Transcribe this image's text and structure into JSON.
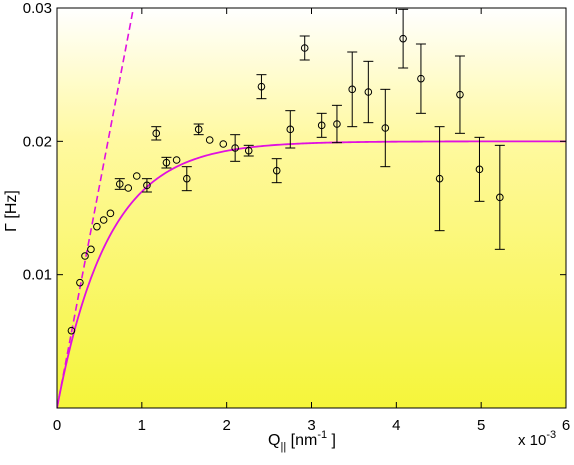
{
  "chart_data": {
    "type": "scatter",
    "title": "",
    "xlabel": "Q",
    "xlabel_sub": "||",
    "xlabel_unit": " [nm",
    "xlabel_exp": "-1",
    "xlabel_tail": " ]",
    "ylabel": "Γ [Hz]",
    "x_multiplier": "x 10",
    "x_multiplier_exp": "-3",
    "xlim": [
      0,
      6
    ],
    "ylim": [
      0,
      0.03
    ],
    "x_ticks": [
      "0",
      "1",
      "2",
      "3",
      "4",
      "5",
      "6"
    ],
    "y_ticks": [
      "0.01",
      "0.02",
      "0.03"
    ],
    "background_gradient": [
      "#ffffff",
      "#fff9a0",
      "#f5f53a"
    ],
    "fit_color": "#e010e0",
    "marker_color": "#000000",
    "series": [
      {
        "kind": "points",
        "points": [
          {
            "x": 0.17,
            "y": 0.0058,
            "err": 0
          },
          {
            "x": 0.27,
            "y": 0.0094,
            "err": 0
          },
          {
            "x": 0.33,
            "y": 0.0114,
            "err": 0
          },
          {
            "x": 0.4,
            "y": 0.0119,
            "err": 0
          },
          {
            "x": 0.47,
            "y": 0.0136,
            "err": 0
          },
          {
            "x": 0.55,
            "y": 0.0141,
            "err": 0
          },
          {
            "x": 0.63,
            "y": 0.0146,
            "err": 0
          },
          {
            "x": 0.74,
            "y": 0.0168,
            "err": 0.0004
          },
          {
            "x": 0.84,
            "y": 0.0165,
            "err": 0
          },
          {
            "x": 0.94,
            "y": 0.0174,
            "err": 0
          },
          {
            "x": 1.06,
            "y": 0.0167,
            "err": 0.0005
          },
          {
            "x": 1.17,
            "y": 0.0206,
            "err": 0.0005
          },
          {
            "x": 1.29,
            "y": 0.0184,
            "err": 0.0004
          },
          {
            "x": 1.41,
            "y": 0.0186,
            "err": 0
          },
          {
            "x": 1.53,
            "y": 0.0172,
            "err": 0.0009
          },
          {
            "x": 1.67,
            "y": 0.0209,
            "err": 0.0004
          },
          {
            "x": 1.8,
            "y": 0.0201,
            "err": 0
          },
          {
            "x": 1.96,
            "y": 0.0198,
            "err": 0
          },
          {
            "x": 2.1,
            "y": 0.0195,
            "err": 0.001
          },
          {
            "x": 2.26,
            "y": 0.0193,
            "err": 0.0004
          },
          {
            "x": 2.41,
            "y": 0.0241,
            "err": 0.0009
          },
          {
            "x": 2.59,
            "y": 0.0178,
            "err": 0.0009
          },
          {
            "x": 2.75,
            "y": 0.0209,
            "err": 0.0014
          },
          {
            "x": 2.92,
            "y": 0.027,
            "err": 0.0009
          },
          {
            "x": 3.12,
            "y": 0.0212,
            "err": 0.0009
          },
          {
            "x": 3.3,
            "y": 0.0213,
            "err": 0.0014
          },
          {
            "x": 3.48,
            "y": 0.0239,
            "err": 0.0028
          },
          {
            "x": 3.67,
            "y": 0.0237,
            "err": 0.0023
          },
          {
            "x": 3.87,
            "y": 0.021,
            "err": 0.0029
          },
          {
            "x": 4.08,
            "y": 0.0277,
            "err": 0.0022
          },
          {
            "x": 4.29,
            "y": 0.0247,
            "err": 0.0026
          },
          {
            "x": 4.51,
            "y": 0.0172,
            "err": 0.0039
          },
          {
            "x": 4.75,
            "y": 0.0235,
            "err": 0.0029
          },
          {
            "x": 4.98,
            "y": 0.0179,
            "err": 0.0024
          },
          {
            "x": 5.22,
            "y": 0.0158,
            "err": 0.0039
          }
        ]
      },
      {
        "kind": "fit",
        "plateau": 0.02,
        "scale": 0.6
      },
      {
        "kind": "asymptote",
        "slope": 0.0333
      }
    ]
  }
}
